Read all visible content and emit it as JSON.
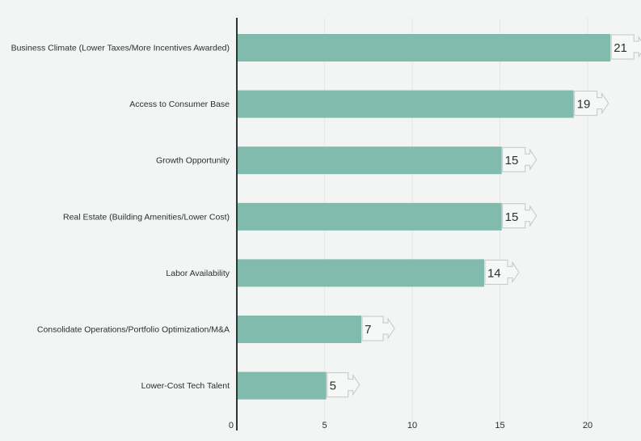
{
  "chart_data": {
    "type": "bar",
    "orientation": "horizontal",
    "categories": [
      "Business Climate (Lower Taxes/More Incentives Awarded)",
      "Access to Consumer Base",
      "Growth Opportunity",
      "Real Estate (Building Amenities/Lower Cost)",
      "Labor Availability",
      "Consolidate Operations/Portfolio Optimization/M&A",
      "Lower-Cost Tech Talent"
    ],
    "values": [
      21.3,
      19.2,
      15.1,
      15.1,
      14.1,
      7.1,
      5.1
    ],
    "data_labels": [
      "21",
      "19",
      "15",
      "15",
      "14",
      "7",
      "5"
    ],
    "x_ticks": [
      "0",
      "5",
      "10",
      "15",
      "20"
    ],
    "xlim": [
      0,
      23
    ],
    "grid": true,
    "legend": "none",
    "colors": {
      "bar": "#80bbad",
      "grid": "#e6e8e7",
      "axis": "#2e3533",
      "text": "#2b2f2e",
      "background": "#f3f5f4",
      "label_box": "#f6f7f7",
      "label_border": "#c4c7c6"
    }
  }
}
